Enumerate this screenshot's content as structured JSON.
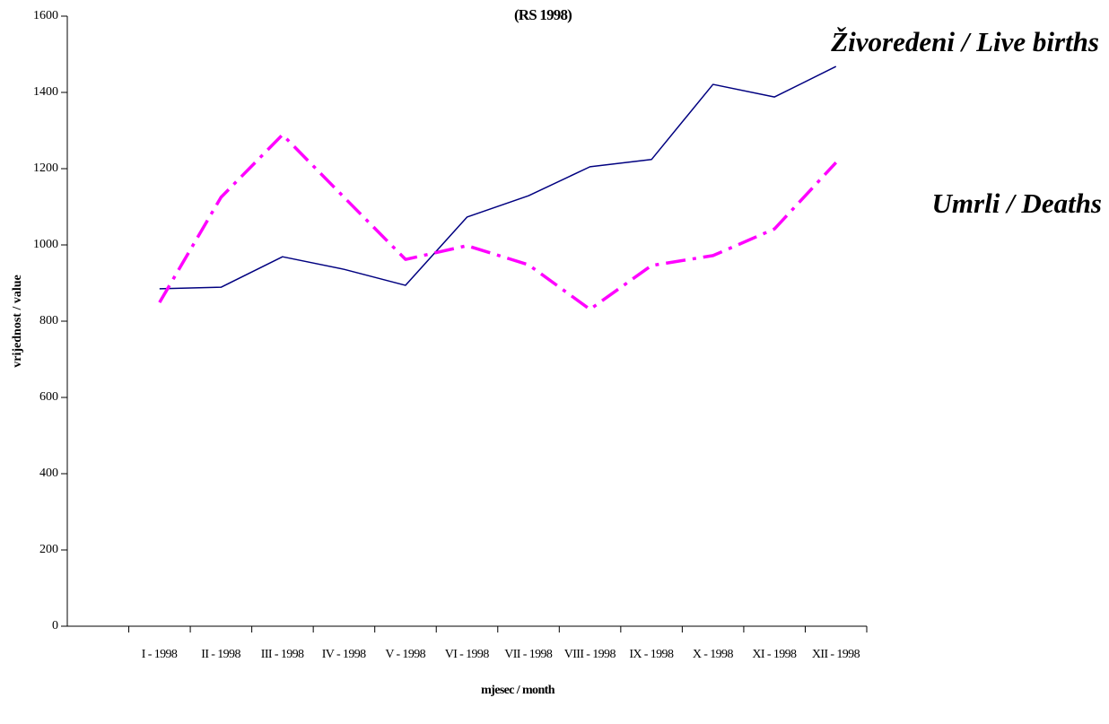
{
  "chart_data": {
    "type": "line",
    "title": "(RS 1998)",
    "x_label": "mjesec / month",
    "y_label": "vrijednost / value",
    "categories": [
      null,
      "I - 1998",
      "II - 1998",
      "III - 1998",
      "IV - 1998",
      "V - 1998",
      "VI - 1998",
      "VII - 1998",
      "VIII - 1998",
      "IX - 1998",
      "X - 1998",
      "XI - 1998",
      "XII - 1998"
    ],
    "series": [
      {
        "name": "Živoredeni / Live births",
        "color": "#000080",
        "values": [
          null,
          885,
          889,
          969,
          936,
          894,
          1073,
          1129,
          1205,
          1224,
          1421,
          1388,
          1468
        ]
      },
      {
        "name": "Umrli / Deaths",
        "color": "#ff00ff",
        "values": [
          null,
          849,
          1125,
          1289,
          1125,
          962,
          998,
          948,
          831,
          946,
          972,
          1042,
          1216
        ]
      }
    ],
    "ylim": [
      0,
      1600
    ],
    "yticks": [
      0,
      200,
      400,
      600,
      800,
      1000,
      1200,
      1400,
      1600
    ],
    "grid": false
  }
}
